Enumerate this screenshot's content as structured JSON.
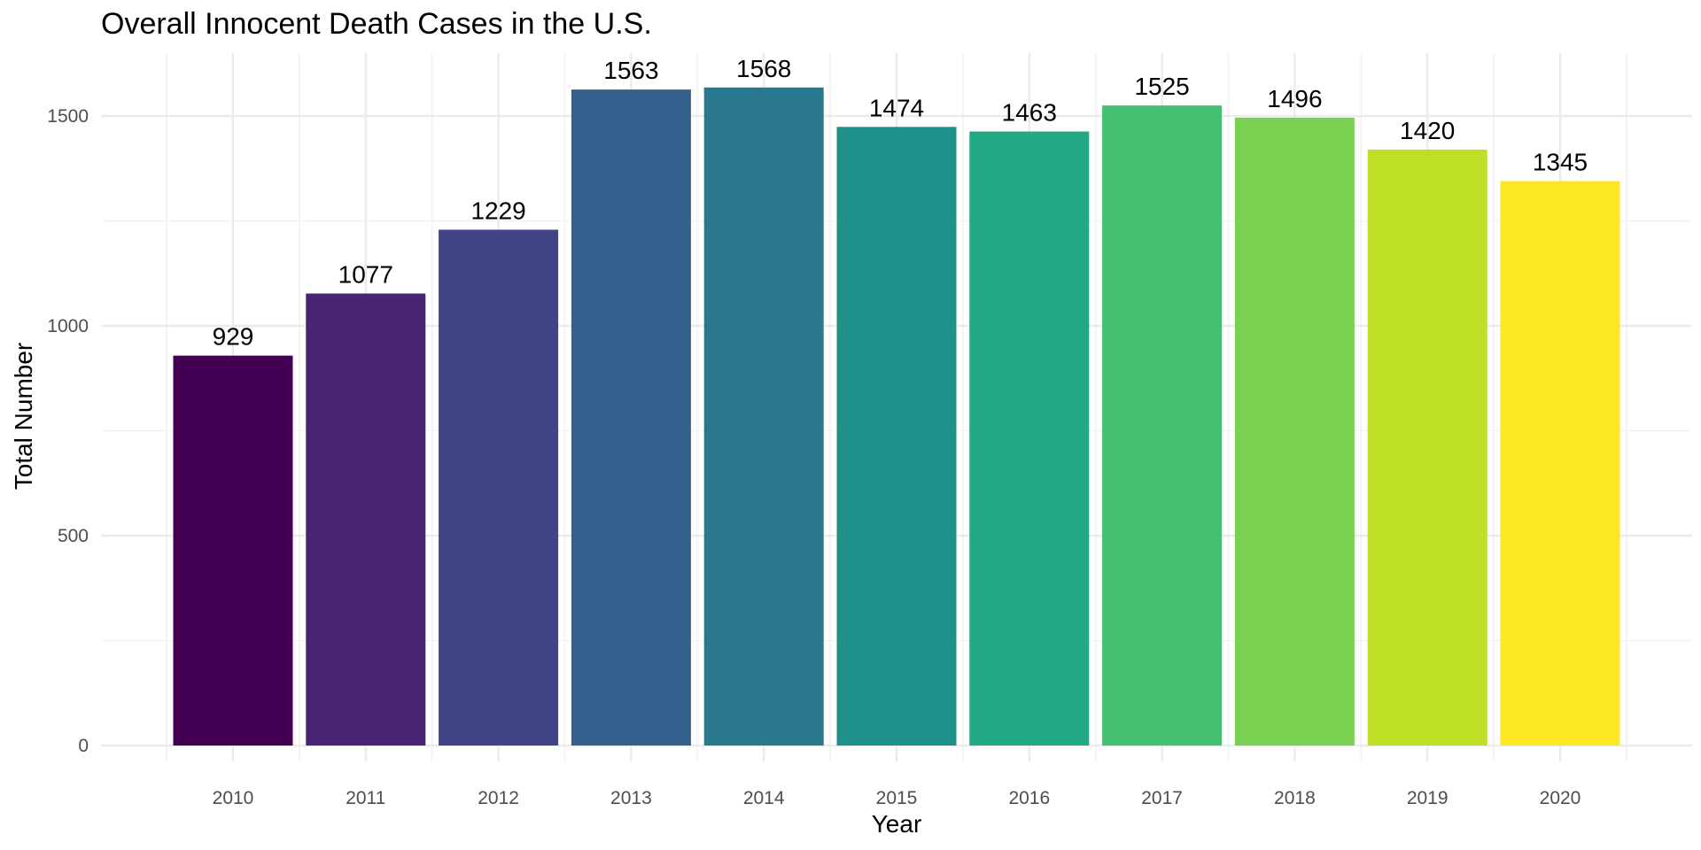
{
  "chart_data": {
    "type": "bar",
    "title": "Overall Innocent Death Cases in the U.S.",
    "xlabel": "Year",
    "ylabel": "Total Number",
    "categories": [
      "2010",
      "2011",
      "2012",
      "2013",
      "2014",
      "2015",
      "2016",
      "2017",
      "2018",
      "2019",
      "2020"
    ],
    "values": [
      929,
      1077,
      1229,
      1563,
      1568,
      1474,
      1463,
      1525,
      1496,
      1420,
      1345
    ],
    "data_labels": [
      "929",
      "1077",
      "1229",
      "1563",
      "1568",
      "1474",
      "1463",
      "1525",
      "1496",
      "1420",
      "1345"
    ],
    "yticks": [
      0,
      500,
      1000,
      1500
    ],
    "ytick_labels": [
      "0",
      "500",
      "1000",
      "1500"
    ],
    "ylim": [
      0,
      1650
    ],
    "grid": true,
    "legend": "none",
    "colors": [
      "#440154",
      "#482475",
      "#414487",
      "#355f8d",
      "#2a788e",
      "#21918c",
      "#22a884",
      "#44bf70",
      "#7ad151",
      "#bddf26",
      "#fde725"
    ]
  }
}
